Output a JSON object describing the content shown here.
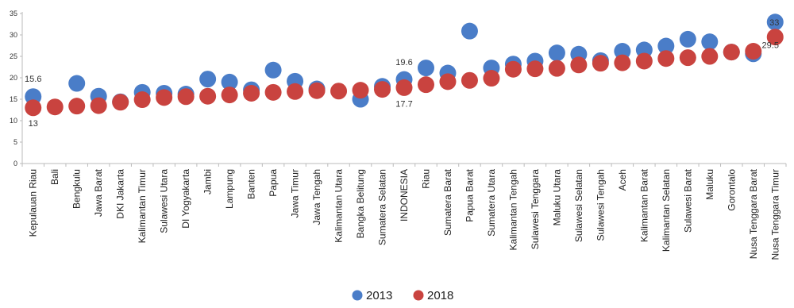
{
  "chart_data": {
    "type": "scatter",
    "categories": [
      "Kepulauan Riau",
      "Bali",
      "Bengkulu",
      "Jawa Barat",
      "DKI Jakarta",
      "Kalimantan Timur",
      "Sulawesi Utara",
      "DI Yogyakarta",
      "Jambi",
      "Lampung",
      "Banten",
      "Papua",
      "Jawa Timur",
      "Jawa Tengah",
      "Kalimantan Utara",
      "Bangka Belitung",
      "Sumatera Selatan",
      "INDONESIA",
      "Riau",
      "Sumatera Barat",
      "Papua Barat",
      "Sumatera Utara",
      "Kalimantan Tengah",
      "Sulawesi Tenggara",
      "Maluku Utara",
      "Sulawesi Selatan",
      "Sulawesi Tengah",
      "Aceh",
      "Kalimantan Barat",
      "Kalimantan Selatan",
      "Sulawesi Barat",
      "Maluku",
      "Gorontalo",
      "Nusa Tenggara Barat",
      "Nusa Tenggara Timur"
    ],
    "series": [
      {
        "name": "2013",
        "color": "#4a7dc8",
        "values": [
          15.6,
          null,
          18.7,
          15.7,
          14.4,
          16.6,
          16.4,
          16.2,
          19.7,
          19.0,
          17.2,
          21.8,
          19.2,
          17.4,
          null,
          15.0,
          18.0,
          19.6,
          22.3,
          21.1,
          30.9,
          22.3,
          23.2,
          23.9,
          25.8,
          25.5,
          24.0,
          26.2,
          26.5,
          27.4,
          29.0,
          28.4,
          26.0,
          25.6,
          33.0
        ]
      },
      {
        "name": "2018",
        "color": "#c9433f",
        "values": [
          13.0,
          13.2,
          13.4,
          13.5,
          14.3,
          14.9,
          15.4,
          15.6,
          15.7,
          16.0,
          16.4,
          16.6,
          16.8,
          17.0,
          16.9,
          17.1,
          17.3,
          17.7,
          18.4,
          19.1,
          19.4,
          19.9,
          22.0,
          22.1,
          22.2,
          23.0,
          23.4,
          23.5,
          23.9,
          24.5,
          24.7,
          25.0,
          26.0,
          26.2,
          29.5
        ]
      }
    ],
    "data_labels": [
      {
        "text": "15.6",
        "series": "2013",
        "category": "Kepulauan Riau"
      },
      {
        "text": "13",
        "series": "2018",
        "category": "Kepulauan Riau"
      },
      {
        "text": "19.6",
        "series": "2013",
        "category": "INDONESIA"
      },
      {
        "text": "17.7",
        "series": "2018",
        "category": "INDONESIA"
      },
      {
        "text": "33",
        "series": "2013",
        "category": "Nusa Tenggara Timur"
      },
      {
        "text": "29.5",
        "series": "2018",
        "category": "Nusa Tenggara Timur"
      }
    ],
    "yticks": [
      0,
      5,
      10,
      15,
      20,
      25,
      30,
      35
    ],
    "ylim": [
      0,
      35
    ],
    "grid": false,
    "legend_position": "bottom-center"
  }
}
